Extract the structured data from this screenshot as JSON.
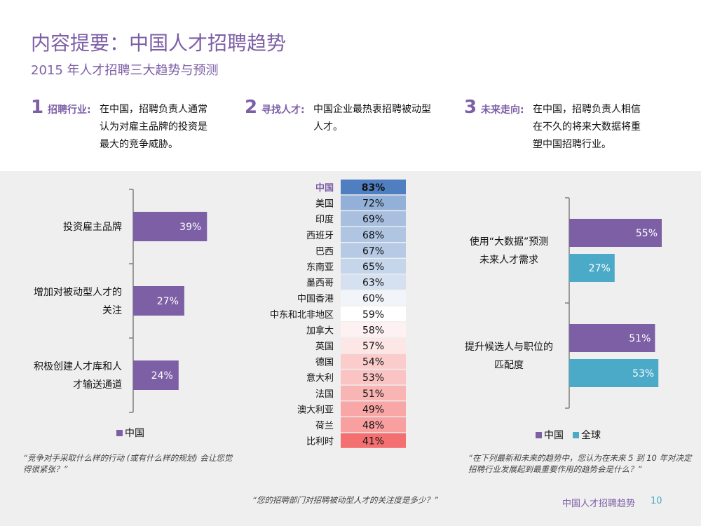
{
  "header": {
    "title": "内容提要：中国人才招聘趋势",
    "subtitle": "2015 年人才招聘三大趋势与预测"
  },
  "trends": [
    {
      "number": "1",
      "label": "招聘行业:",
      "lines": [
        "在中国，招聘负责人通常",
        "认为对雇主品牌的投资是",
        "最大的竞争威胁。"
      ]
    },
    {
      "number": "2",
      "label": "寻找人才:",
      "lines": [
        "中国企业最热衷招聘被动型",
        "人才。"
      ]
    },
    {
      "number": "3",
      "label": "未来走向:",
      "lines": [
        "在中国，招聘负责人相信",
        "在不久的将来大数据将重",
        "塑中国招聘行业。"
      ]
    }
  ],
  "colors": {
    "purple": "#7d5fa6",
    "teal": "#4aaac8",
    "heat_high": "#4f7fc0",
    "heat_low": "#f47070"
  },
  "chart_data": [
    {
      "type": "bar",
      "orientation": "horizontal",
      "categories": [
        "投资雇主品牌",
        "增加对被动型人才的关注",
        "积极创建人才库和人才输送通道"
      ],
      "category_lines": [
        [
          "投资雇主品牌"
        ],
        [
          "增加对被动型人才的",
          "关注"
        ],
        [
          "积极创建人才库和人",
          "才输送通道"
        ]
      ],
      "series": [
        {
          "name": "中国",
          "values": [
            39,
            27,
            24
          ]
        }
      ],
      "value_suffix": "%",
      "xlim": [
        0,
        100
      ],
      "legend": "bottom",
      "question": "“竞争对手采取什么样的行动 (或有什么样的规划) 会让您觉得很紧张？”"
    },
    {
      "type": "table",
      "style": "heatmap",
      "categories": [
        "中国",
        "美国",
        "印度",
        "西班牙",
        "巴西",
        "东南亚",
        "墨西哥",
        "中国香港",
        "中东和北非地区",
        "加拿大",
        "英国",
        "德国",
        "意大利",
        "法国",
        "澳大利亚",
        "荷兰",
        "比利时"
      ],
      "values": [
        83,
        72,
        69,
        68,
        67,
        65,
        63,
        60,
        59,
        58,
        57,
        54,
        53,
        51,
        49,
        48,
        41
      ],
      "highlight": "中国",
      "value_suffix": "%",
      "question": "“您的招聘部门对招聘被动型人才的关注度是多少？”"
    },
    {
      "type": "bar",
      "orientation": "horizontal",
      "categories": [
        "使用“大数据”预测未来人才需求",
        "提升候选人与职位的匹配度"
      ],
      "category_lines": [
        [
          "使用“大数据”预测",
          "未来人才需求"
        ],
        [
          "提升候选人与职位的",
          "匹配度"
        ]
      ],
      "series": [
        {
          "name": "中国",
          "values": [
            55,
            51
          ]
        },
        {
          "name": "全球",
          "values": [
            27,
            53
          ]
        }
      ],
      "value_suffix": "%",
      "xlim": [
        0,
        100
      ],
      "legend": "bottom",
      "question": "“在下列最新和未来的趋势中，您认为在未来 5 到 10 年对决定招聘行业发展起到最重要作用的趋势会是什么？”"
    }
  ],
  "footer": {
    "text": "中国人才招聘趋势",
    "page": "10"
  }
}
